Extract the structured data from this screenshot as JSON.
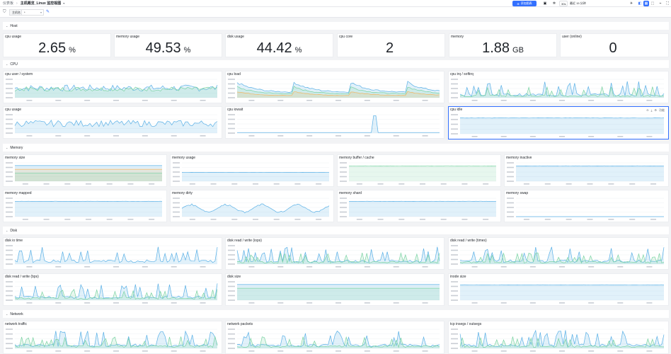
{
  "topbar": {
    "breadcrumb_root": "仪表板",
    "breadcrumb_current": "主机概览_Linux 监控视图",
    "add_chart_label": "添加图表",
    "refresh_interval": "30s",
    "time_range": "最近 15 分钟"
  },
  "filters": {
    "variable_label": "主机名",
    "variable_value": "*"
  },
  "host_row": {
    "title": "Host",
    "stats": [
      {
        "title": "cpu usage",
        "value": "2.65",
        "unit": "%"
      },
      {
        "title": "memory usage",
        "value": "49.53",
        "unit": "%"
      },
      {
        "title": "disk usage",
        "value": "44.42",
        "unit": "%"
      },
      {
        "title": "cpu core",
        "value": "2",
        "unit": ""
      },
      {
        "title": "memory",
        "value": "1.88",
        "unit": "GB"
      },
      {
        "title": "user (online)",
        "value": "0",
        "unit": ""
      }
    ]
  },
  "rows": {
    "cpu": "CPU",
    "memory": "Memory",
    "disk": "Disk",
    "network": "Network"
  },
  "panel_titles": {
    "cpu_user_system": "cpu user / system",
    "cpu_load": "cpu load",
    "cpu_irq_softirq": "cpu irq / softirq",
    "cpu_usage": "cpu usage",
    "cpu_iowait": "cpu iowait",
    "cpu_idle": "cpu idle",
    "memory_size": "memory size",
    "memory_usage": "memory usage",
    "memory_buffer_cache": "memory buffer / cache",
    "memory_inactive": "memory inactive",
    "memory_mapped": "memory mapped",
    "memory_dirty": "memory dirty",
    "memory_shard": "memory shard",
    "memory_swap": "memory swap",
    "disk_io_time": "disk io time",
    "disk_rw_iops": "disk read / write (iops)",
    "disk_rw_times": "disk read / write (times)",
    "disk_rw_bps": "disk read / write (bps)",
    "disk_size": "disk size",
    "inode_size": "inode size",
    "network_traffic": "network traffic",
    "network_packets": "network packets",
    "tcp_insegs_outsegs": "tcp insegs / outsegs"
  },
  "cpu_idle_tools": "功能",
  "colors": {
    "primary": "#3370ff",
    "series_blue": "#5ab0e6",
    "series_green": "#7ad3a3",
    "series_orange": "#f3b660",
    "series_purple": "#a690e6"
  }
}
